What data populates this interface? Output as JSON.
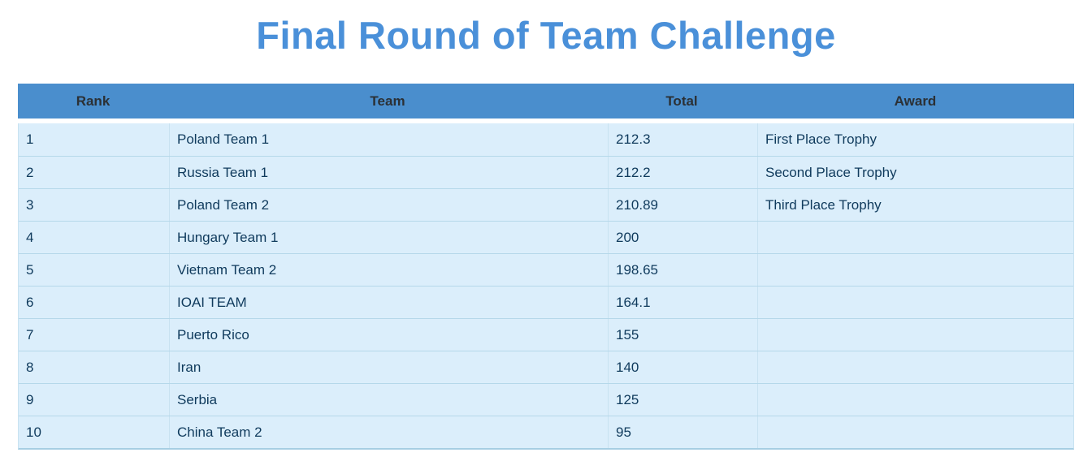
{
  "page_title": "Final Round of Team Challenge",
  "colors": {
    "title": "#4a90d9",
    "header_bg": "#4a8ecd",
    "header_text": "#2b3035",
    "row_bg": "#dbeefb",
    "row_text": "#0f3a5c",
    "row_divider": "#b5d8ea",
    "col_divider": "#c8e2f1",
    "bottom_border": "#a6cee3"
  },
  "chart_data": {
    "type": "table",
    "title": "Final Round of Team Challenge",
    "columns": [
      "Rank",
      "Team",
      "Total",
      "Award"
    ],
    "rows": [
      {
        "rank": "1",
        "team": "Poland Team 1",
        "total": "212.3",
        "award": "First Place Trophy"
      },
      {
        "rank": "2",
        "team": "Russia Team 1",
        "total": "212.2",
        "award": "Second Place Trophy"
      },
      {
        "rank": "3",
        "team": "Poland Team 2",
        "total": "210.89",
        "award": "Third Place Trophy"
      },
      {
        "rank": "4",
        "team": "Hungary Team 1",
        "total": "200",
        "award": ""
      },
      {
        "rank": "5",
        "team": "Vietnam Team 2",
        "total": "198.65",
        "award": ""
      },
      {
        "rank": "6",
        "team": "IOAI TEAM",
        "total": "164.1",
        "award": ""
      },
      {
        "rank": "7",
        "team": "Puerto Rico",
        "total": "155",
        "award": ""
      },
      {
        "rank": "8",
        "team": "Iran",
        "total": "140",
        "award": ""
      },
      {
        "rank": "9",
        "team": "Serbia",
        "total": "125",
        "award": ""
      },
      {
        "rank": "10",
        "team": "China Team 2",
        "total": "95",
        "award": ""
      }
    ]
  }
}
